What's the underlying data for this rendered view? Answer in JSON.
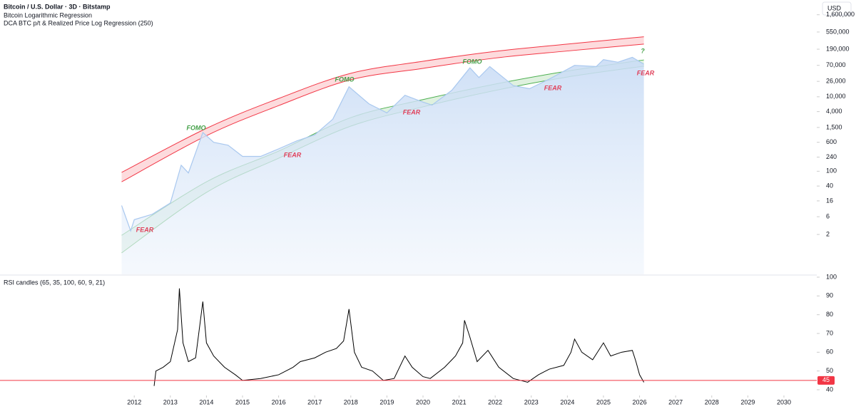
{
  "chart_data": [
    {
      "type": "area",
      "title": "Bitcoin / U.S. Dollar · 3D · Bitstamp",
      "indicators": [
        "Bitcoin Logarithmic Regression",
        "DCA BTC p/t & Realized Price Log Regression (250)"
      ],
      "currency": "USD",
      "log_scale": true,
      "color": "#a9c8ef",
      "x": [
        2011.65,
        2011.9,
        2012.0,
        2012.5,
        2013.0,
        2013.3,
        2013.5,
        2013.9,
        2014.2,
        2014.6,
        2015.0,
        2015.5,
        2016.0,
        2016.5,
        2017.0,
        2017.5,
        2017.95,
        2018.5,
        2019.0,
        2019.5,
        2020.0,
        2020.25,
        2020.8,
        2021.3,
        2021.55,
        2021.85,
        2022.5,
        2022.95,
        2023.5,
        2024.2,
        2024.8,
        2025.0,
        2025.4,
        2025.8,
        2026.12
      ],
      "values": [
        12,
        2.5,
        5,
        7,
        14,
        145,
        90,
        1100,
        600,
        500,
        250,
        250,
        400,
        650,
        950,
        2500,
        18600,
        6500,
        3700,
        11000,
        7200,
        6000,
        15000,
        60000,
        33000,
        65000,
        20000,
        16500,
        30000,
        70000,
        65000,
        100000,
        85000,
        115000,
        75000
      ],
      "band_x": [
        2011.65,
        2014,
        2016,
        2018,
        2020,
        2022,
        2024,
        2026.12
      ],
      "bands": [
        {
          "color": "#f23645",
          "upper": [
            93,
            1420,
            9000,
            42800,
            90000,
            166000,
            260000,
            410000
          ],
          "lower": [
            52,
            900,
            5800,
            28700,
            58000,
            110000,
            170000,
            260000
          ]
        },
        {
          "color": "#4caf50",
          "upper": [
            1.9,
            52,
            348,
            2760,
            8400,
            22000,
            49000,
            98000
          ],
          "lower": [
            0.64,
            27,
            224,
            1630,
            5370,
            14800,
            34000,
            66600
          ]
        }
      ],
      "annotations": [
        {
          "text": "FEAR",
          "color": "#e0405a"
        },
        {
          "text": "FOMO",
          "color": "#43a047"
        },
        {
          "text": "FEAR",
          "color": "#e0405a"
        },
        {
          "text": "FOMO",
          "color": "#43a047"
        },
        {
          "text": "FEAR",
          "color": "#e0405a"
        },
        {
          "text": "FOMO",
          "color": "#43a047"
        },
        {
          "text": "FEAR",
          "color": "#e0405a"
        },
        {
          "text": "?",
          "color": "#43a047"
        },
        {
          "text": "FEAR",
          "color": "#e0405a"
        }
      ],
      "xlim": [
        2008.28,
        2030.91
      ],
      "ylim": [
        0.17,
        2800000
      ],
      "yticks": [
        2,
        6,
        16,
        40,
        100,
        240,
        600,
        {
          "value": 1500,
          "label": "1,500"
        },
        {
          "value": 4000,
          "label": "4,000"
        },
        {
          "value": 10000,
          "label": "10,000"
        },
        {
          "value": 26000,
          "label": "26,000"
        },
        {
          "value": 70000,
          "label": "70,000"
        },
        {
          "value": 190000,
          "label": "190,000"
        },
        {
          "value": 550000,
          "label": "550,000"
        },
        {
          "value": 1600000,
          "label": "1,600,000"
        }
      ]
    },
    {
      "type": "line",
      "title": "RSI candles (65, 35, 100, 60, 9, 21)",
      "color": "#000000",
      "x": [
        2012.55,
        2012.6,
        2012.8,
        2013.0,
        2013.2,
        2013.25,
        2013.35,
        2013.5,
        2013.7,
        2013.9,
        2014.0,
        2014.2,
        2014.5,
        2014.8,
        2015.0,
        2015.5,
        2016.0,
        2016.4,
        2016.6,
        2017.0,
        2017.3,
        2017.6,
        2017.8,
        2017.95,
        2018.1,
        2018.3,
        2018.6,
        2018.9,
        2019.2,
        2019.5,
        2019.7,
        2020.0,
        2020.2,
        2020.6,
        2020.9,
        2021.1,
        2021.15,
        2021.3,
        2021.5,
        2021.8,
        2022.1,
        2022.5,
        2022.9,
        2023.2,
        2023.5,
        2023.9,
        2024.1,
        2024.2,
        2024.4,
        2024.7,
        2025.0,
        2025.2,
        2025.5,
        2025.8,
        2025.9,
        2026.0,
        2026.12
      ],
      "values": [
        42,
        50,
        52,
        55,
        72,
        94,
        65,
        55,
        57,
        87,
        65,
        58,
        52,
        48,
        45,
        46,
        48,
        52,
        55,
        57,
        60,
        62,
        66,
        83,
        60,
        52,
        50,
        45,
        46,
        58,
        52,
        47,
        46,
        52,
        58,
        65,
        77,
        68,
        55,
        61,
        52,
        46,
        44,
        48,
        51,
        53,
        60,
        67,
        60,
        56,
        65,
        58,
        60,
        61,
        55,
        48,
        44
      ],
      "level": 45,
      "level_color": "#f23645",
      "xlim": [
        2008.28,
        2030.91
      ],
      "ylim": [
        40,
        100
      ],
      "yticks": [
        40,
        50,
        60,
        70,
        80,
        90,
        100
      ],
      "xticks": [
        2012,
        2013,
        2014,
        2015,
        2016,
        2017,
        2018,
        2019,
        2020,
        2021,
        2022,
        2023,
        2024,
        2025,
        2026,
        2027,
        2028,
        2029,
        2030
      ]
    }
  ]
}
